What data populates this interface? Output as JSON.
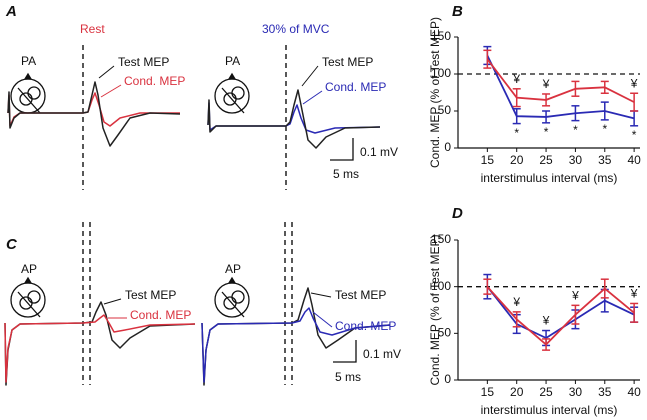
{
  "panel_labels": [
    "A",
    "B",
    "C",
    "D"
  ],
  "column_titles": [
    "Rest",
    "30% of MVC"
  ],
  "traces": [
    {
      "coil": "PA",
      "test_label": "Test MEP",
      "cond_label": "Cond. MEP"
    },
    {
      "coil": "PA",
      "test_label": "Test MEP",
      "cond_label": "Cond. MEP",
      "scale_v": "0.1 mV",
      "scale_t": "5 ms"
    },
    {
      "coil": "AP",
      "test_label": "Test MEP",
      "cond_label": "Cond. MEP"
    },
    {
      "coil": "AP",
      "test_label": "Test MEP",
      "cond_label": "Cond. MEP",
      "scale_v": "0.1 mV",
      "scale_t": "5 ms"
    }
  ],
  "chart_data": [
    {
      "type": "line",
      "y_label": "Cond. MEP (% of Test MEP)",
      "x_label": "interstimulus interval (ms)",
      "x": [
        15,
        20,
        25,
        30,
        35,
        40
      ],
      "xlim": [
        10,
        41
      ],
      "xticks": [
        15,
        20,
        25,
        30,
        35,
        40
      ],
      "ylim": [
        0,
        150
      ],
      "yticks": [
        0,
        50,
        100,
        150
      ],
      "reference_line": 100,
      "series": [
        {
          "color": "#2a2ab4",
          "values": [
            125,
            43,
            42,
            47,
            50,
            40
          ],
          "errors": [
            12,
            10,
            8,
            10,
            12,
            10
          ]
        },
        {
          "color": "#d9323f",
          "values": [
            120,
            68,
            65,
            80,
            82,
            62
          ],
          "errors": [
            12,
            12,
            8,
            10,
            8,
            12
          ]
        }
      ],
      "annotations_above": {
        "text": "¥",
        "x": [
          20,
          25,
          40
        ]
      },
      "annotations_below": {
        "text": "*",
        "x": [
          20,
          25,
          30,
          35,
          40
        ]
      }
    },
    {
      "type": "line",
      "y_label": "Cond. MEP (% of Test MEP)",
      "x_label": "interstimulus interval (ms)",
      "x": [
        15,
        20,
        25,
        30,
        35,
        40
      ],
      "xlim": [
        10,
        41
      ],
      "xticks": [
        15,
        20,
        25,
        30,
        35,
        40
      ],
      "ylim": [
        0,
        150
      ],
      "yticks": [
        0,
        50,
        100,
        150
      ],
      "reference_line": 100,
      "series": [
        {
          "color": "#2a2ab4",
          "values": [
            100,
            60,
            45,
            65,
            85,
            70
          ],
          "errors": [
            13,
            10,
            8,
            10,
            12,
            8
          ]
        },
        {
          "color": "#d9323f",
          "values": [
            100,
            65,
            38,
            70,
            98,
            72
          ],
          "errors": [
            8,
            8,
            6,
            10,
            10,
            10
          ]
        }
      ],
      "annotations_above": {
        "text": "¥",
        "x": [
          20,
          25,
          30,
          40
        ]
      }
    }
  ]
}
